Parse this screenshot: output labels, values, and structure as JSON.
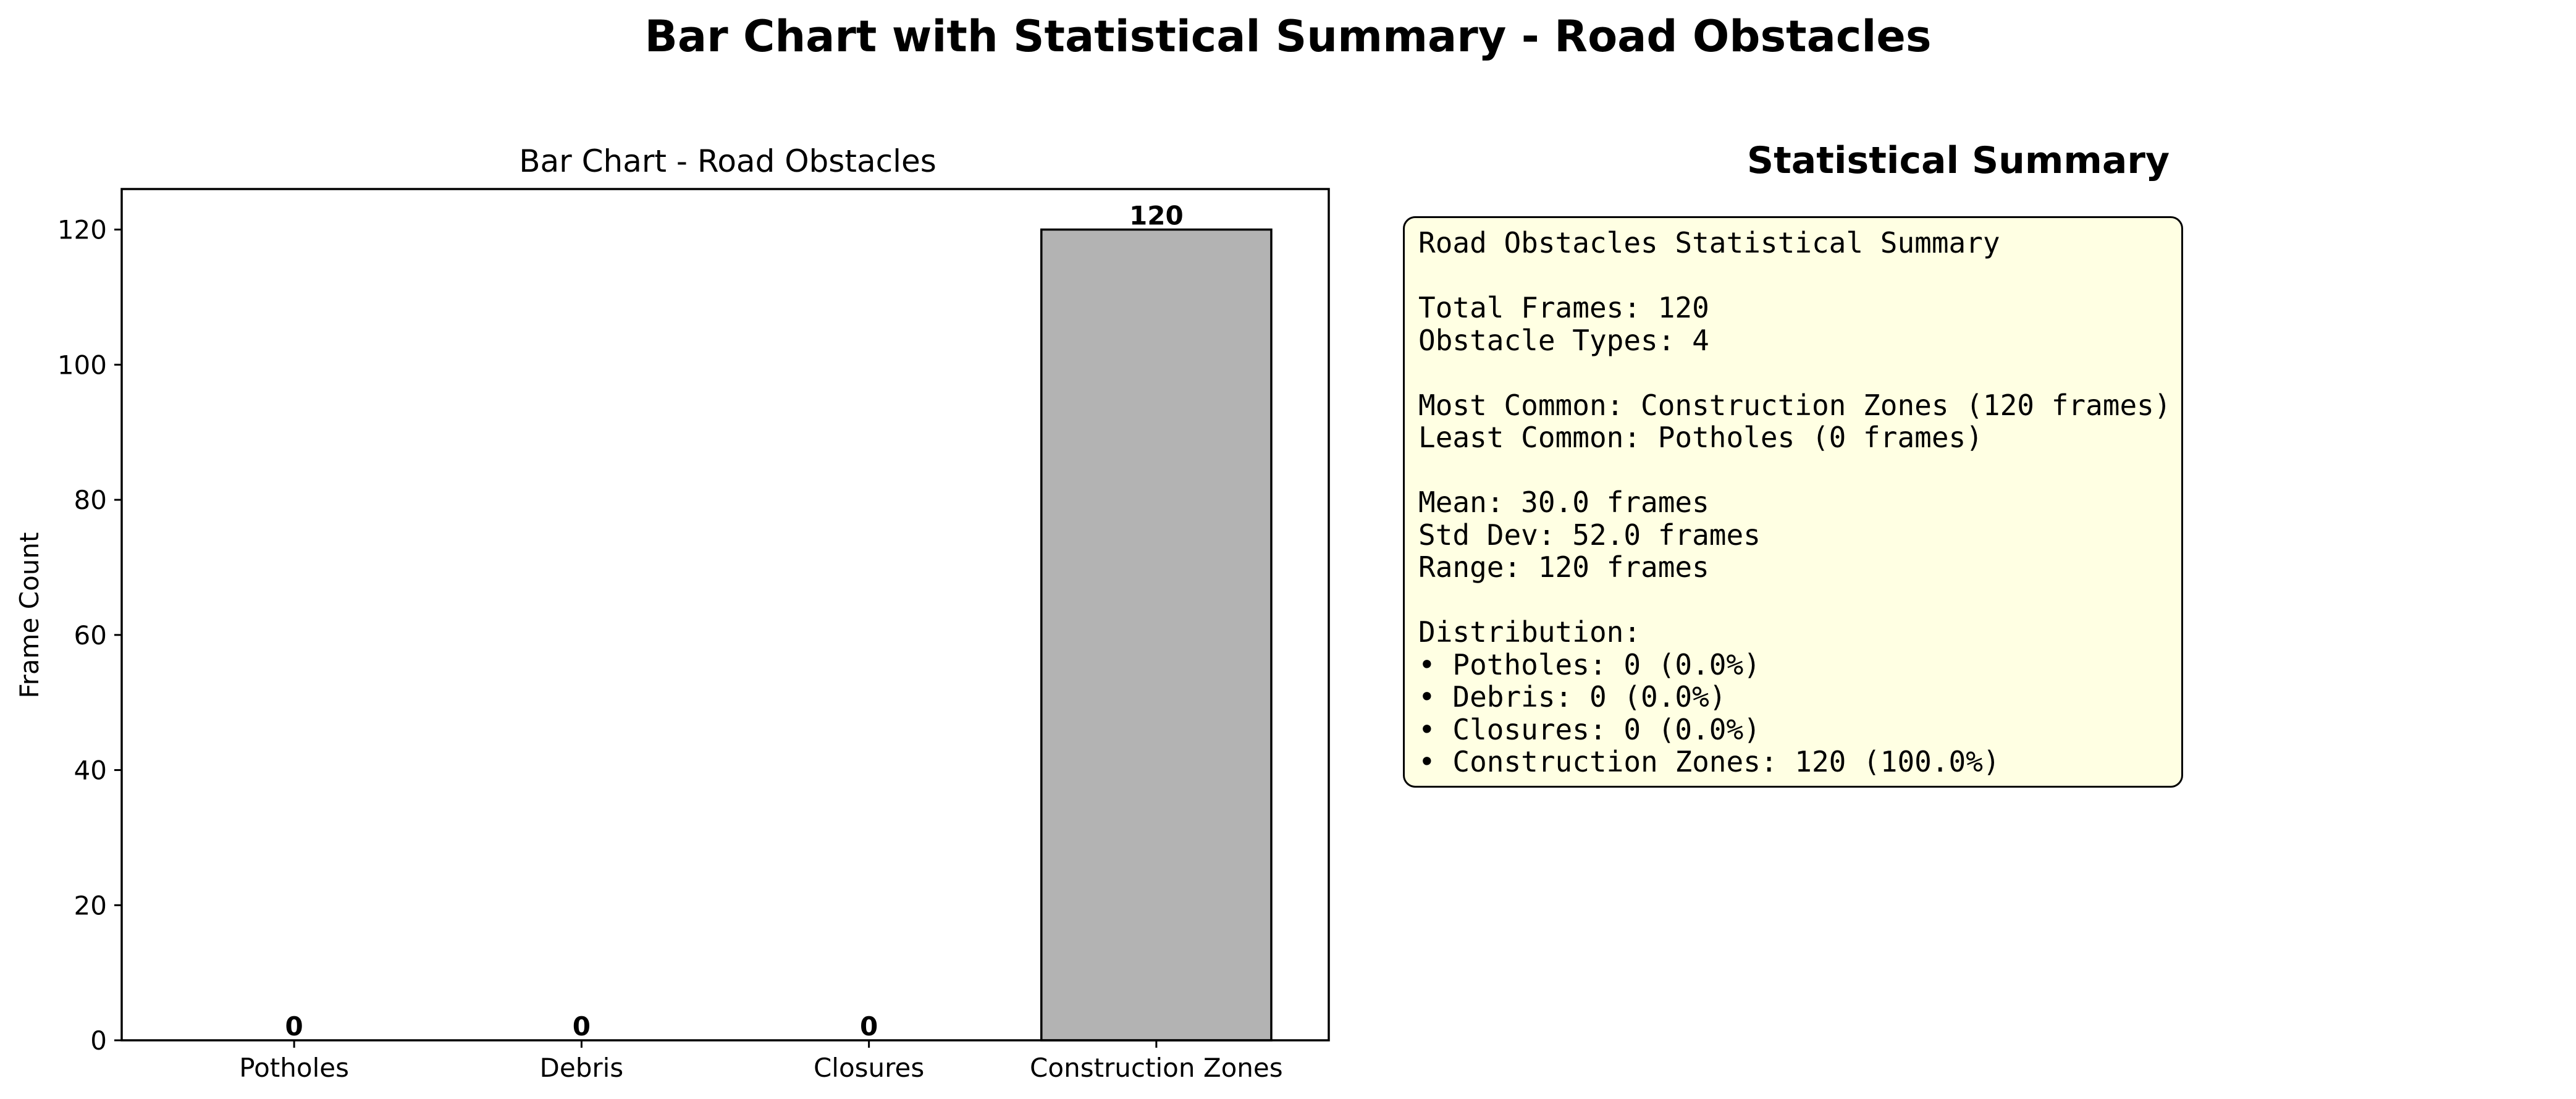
{
  "figure": {
    "title": "Bar Chart with Statistical Summary - Road Obstacles"
  },
  "chart_data": {
    "type": "bar",
    "title": "Bar Chart - Road Obstacles",
    "xlabel": "",
    "ylabel": "Frame Count",
    "categories": [
      "Potholes",
      "Debris",
      "Closures",
      "Construction Zones"
    ],
    "values": [
      0,
      0,
      0,
      120
    ],
    "data_labels": [
      "0",
      "0",
      "0",
      "120"
    ],
    "ylim": [
      0,
      126
    ],
    "yticks": [
      0,
      20,
      40,
      60,
      80,
      100,
      120
    ],
    "bar_color": "#b3b3b3",
    "edge_color": "#000000",
    "grid": false,
    "legend": "none"
  },
  "summary": {
    "heading": "Statistical Summary",
    "box_color": "#ffffe3",
    "lines": [
      "Road Obstacles Statistical Summary",
      "",
      "Total Frames: 120",
      "Obstacle Types: 4",
      "",
      "Most Common: Construction Zones (120 frames)",
      "Least Common: Potholes (0 frames)",
      "",
      "Mean: 30.0 frames",
      "Std Dev: 52.0 frames",
      "Range: 120 frames",
      "",
      "Distribution:",
      "• Potholes: 0 (0.0%)",
      "• Debris: 0 (0.0%)",
      "• Closures: 0 (0.0%)",
      "• Construction Zones: 120 (100.0%)"
    ]
  }
}
